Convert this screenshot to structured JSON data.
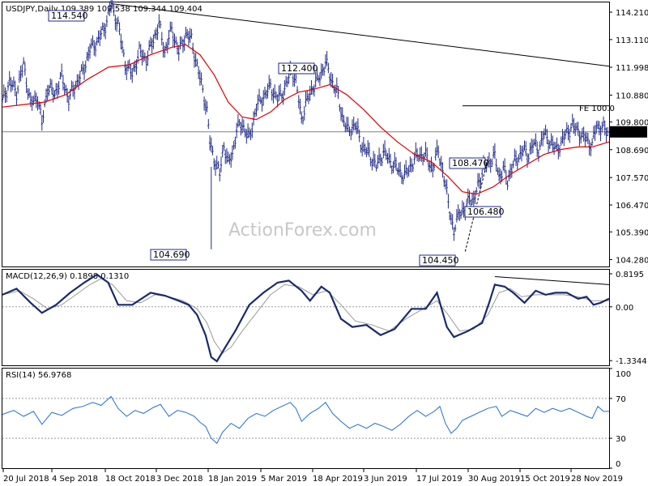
{
  "chart_data": {
    "type": "line",
    "colors": {
      "price": "#1f2a8a",
      "sma": "#e00000",
      "macd": "#1a2a6e",
      "signal": "#9a9a9a",
      "rsi": "#1f6fd6",
      "frame": "#000000",
      "current_price_bg": "#000000"
    },
    "watermark": "ActionForex.com",
    "grid": false,
    "x_axis": {
      "tick_labels": [
        "20 Jul 2018",
        "4 Sep 2018",
        "18 Oct 2018",
        "3 Dec 2018",
        "18 Jan 2019",
        "5 Mar 2019",
        "18 Apr 2019",
        "3 Jun 2019",
        "17 Jul 2019",
        "30 Aug 2019",
        "15 Oct 2019",
        "28 Nov 2019"
      ]
    },
    "price_panel": {
      "header": "USDJPY,Daily  109.389 109.538 109.344 109.404",
      "ylim": [
        104.0,
        114.6
      ],
      "y_ticks": [
        "114.210",
        "113.110",
        "111.998",
        "110.880",
        "109.800",
        "108.690",
        "107.570",
        "106.470",
        "105.390",
        "104.280"
      ],
      "current_price": "109.404",
      "current_value": 109.404,
      "fe_label": "FE 100.0",
      "fe_level": 110.45,
      "price_path": [
        [
          0,
          110.6
        ],
        [
          5,
          111.4
        ],
        [
          10,
          111.0
        ],
        [
          15,
          112.1
        ],
        [
          20,
          110.5
        ],
        [
          25,
          110.8
        ],
        [
          28,
          109.7
        ],
        [
          32,
          111.2
        ],
        [
          37,
          110.9
        ],
        [
          42,
          111.6
        ],
        [
          47,
          110.7
        ],
        [
          52,
          111.3
        ],
        [
          57,
          111.8
        ],
        [
          62,
          112.7
        ],
        [
          67,
          113.0
        ],
        [
          72,
          113.5
        ],
        [
          77,
          114.5
        ],
        [
          82,
          113.7
        ],
        [
          87,
          112.1
        ],
        [
          92,
          111.7
        ],
        [
          97,
          112.6
        ],
        [
          102,
          112.3
        ],
        [
          107,
          113.1
        ],
        [
          111,
          113.7
        ],
        [
          115,
          112.6
        ],
        [
          120,
          113.5
        ],
        [
          125,
          112.6
        ],
        [
          130,
          113.3
        ],
        [
          134,
          113.1
        ],
        [
          138,
          112.0
        ],
        [
          142,
          111.1
        ],
        [
          145,
          110.2
        ],
        [
          147,
          109.0
        ],
        [
          150,
          108.3
        ],
        [
          154,
          107.7
        ],
        [
          157,
          108.9
        ],
        [
          160,
          108.1
        ],
        [
          163,
          108.5
        ],
        [
          166,
          109.5
        ],
        [
          170,
          109.7
        ],
        [
          175,
          109.1
        ],
        [
          180,
          110.4
        ],
        [
          185,
          110.8
        ],
        [
          190,
          111.2
        ],
        [
          195,
          110.7
        ],
        [
          200,
          111.1
        ],
        [
          205,
          111.9
        ],
        [
          208,
          111.4
        ],
        [
          212,
          109.9
        ],
        [
          215,
          110.5
        ],
        [
          220,
          111.2
        ],
        [
          225,
          111.6
        ],
        [
          229,
          112.2
        ],
        [
          233,
          111.5
        ],
        [
          237,
          111.0
        ],
        [
          241,
          110.0
        ],
        [
          245,
          109.4
        ],
        [
          250,
          109.7
        ],
        [
          255,
          108.8
        ],
        [
          260,
          108.5
        ],
        [
          265,
          108.0
        ],
        [
          270,
          108.6
        ],
        [
          275,
          108.2
        ],
        [
          280,
          107.9
        ],
        [
          285,
          107.6
        ],
        [
          290,
          108.1
        ],
        [
          295,
          108.5
        ],
        [
          300,
          108.4
        ],
        [
          305,
          107.9
        ],
        [
          309,
          108.7
        ],
        [
          313,
          107.5
        ],
        [
          317,
          106.3
        ],
        [
          320,
          105.3
        ],
        [
          324,
          106.3
        ],
        [
          328,
          106.1
        ],
        [
          331,
          106.9
        ],
        [
          334,
          106.5
        ],
        [
          337,
          107.3
        ],
        [
          341,
          107.9
        ],
        [
          345,
          108.2
        ],
        [
          349,
          108.4
        ],
        [
          352,
          107.6
        ],
        [
          355,
          107.9
        ],
        [
          358,
          107.4
        ],
        [
          361,
          108.0
        ],
        [
          365,
          108.3
        ],
        [
          369,
          108.7
        ],
        [
          372,
          108.4
        ],
        [
          376,
          108.9
        ],
        [
          380,
          108.7
        ],
        [
          384,
          109.3
        ],
        [
          388,
          109.0
        ],
        [
          392,
          108.7
        ],
        [
          396,
          108.9
        ],
        [
          400,
          109.4
        ],
        [
          404,
          109.6
        ],
        [
          408,
          109.5
        ],
        [
          411,
          109.1
        ],
        [
          414,
          109.2
        ],
        [
          416,
          108.9
        ],
        [
          418,
          108.8
        ],
        [
          421,
          109.7
        ],
        [
          424,
          109.5
        ],
        [
          427,
          109.5
        ],
        [
          430,
          109.4
        ]
      ],
      "sma_path": [
        [
          0,
          110.4
        ],
        [
          15,
          110.5
        ],
        [
          30,
          110.6
        ],
        [
          45,
          110.9
        ],
        [
          60,
          111.5
        ],
        [
          75,
          112.0
        ],
        [
          90,
          112.1
        ],
        [
          105,
          112.5
        ],
        [
          120,
          112.8
        ],
        [
          130,
          112.9
        ],
        [
          140,
          112.5
        ],
        [
          150,
          111.7
        ],
        [
          160,
          110.6
        ],
        [
          170,
          110.0
        ],
        [
          180,
          109.9
        ],
        [
          190,
          110.2
        ],
        [
          200,
          110.7
        ],
        [
          210,
          111.0
        ],
        [
          220,
          111.1
        ],
        [
          232,
          111.3
        ],
        [
          244,
          110.9
        ],
        [
          256,
          110.3
        ],
        [
          268,
          109.6
        ],
        [
          280,
          109.0
        ],
        [
          292,
          108.5
        ],
        [
          304,
          108.2
        ],
        [
          316,
          107.6
        ],
        [
          326,
          107.0
        ],
        [
          336,
          106.9
        ],
        [
          348,
          107.2
        ],
        [
          360,
          107.7
        ],
        [
          372,
          108.1
        ],
        [
          384,
          108.5
        ],
        [
          396,
          108.7
        ],
        [
          408,
          108.8
        ],
        [
          418,
          108.8
        ],
        [
          430,
          109.0
        ]
      ],
      "trendline": {
        "from": [
          77,
          114.55
        ],
        "to": [
          430,
          112.04
        ]
      },
      "annotations": [
        {
          "text": "114.540",
          "x": 77,
          "value": 114.54
        },
        {
          "text": "104.690",
          "x": 148,
          "value": 104.69
        },
        {
          "text": "112.400",
          "x": 229,
          "value": 112.4
        },
        {
          "text": "108.470",
          "x": 350,
          "value": 108.47
        },
        {
          "text": "106.480",
          "x": 358,
          "value": 106.48
        },
        {
          "text": "104.450",
          "x": 328,
          "value": 104.45
        }
      ]
    },
    "macd_panel": {
      "header": "MACD(12,26,9) 0.1898 0.1310",
      "ylim": [
        -1.45,
        0.92
      ],
      "y_ticks": [
        "0.8195",
        "0.00",
        "-1.3344"
      ],
      "zero_line": 0.0,
      "macd_values": [
        [
          0,
          0.3
        ],
        [
          10,
          0.45
        ],
        [
          20,
          0.1
        ],
        [
          28,
          -0.15
        ],
        [
          38,
          0.05
        ],
        [
          48,
          0.35
        ],
        [
          58,
          0.6
        ],
        [
          67,
          0.8
        ],
        [
          75,
          0.6
        ],
        [
          82,
          0.05
        ],
        [
          92,
          0.05
        ],
        [
          105,
          0.35
        ],
        [
          115,
          0.28
        ],
        [
          125,
          0.15
        ],
        [
          132,
          0.05
        ],
        [
          138,
          -0.2
        ],
        [
          144,
          -0.7
        ],
        [
          148,
          -1.25
        ],
        [
          152,
          -1.35
        ],
        [
          158,
          -1.0
        ],
        [
          165,
          -0.6
        ],
        [
          175,
          0.05
        ],
        [
          185,
          0.35
        ],
        [
          195,
          0.6
        ],
        [
          203,
          0.65
        ],
        [
          212,
          0.4
        ],
        [
          218,
          0.15
        ],
        [
          226,
          0.5
        ],
        [
          232,
          0.35
        ],
        [
          240,
          -0.3
        ],
        [
          248,
          -0.5
        ],
        [
          258,
          -0.45
        ],
        [
          268,
          -0.7
        ],
        [
          278,
          -0.55
        ],
        [
          290,
          -0.05
        ],
        [
          300,
          -0.05
        ],
        [
          308,
          0.35
        ],
        [
          315,
          -0.5
        ],
        [
          320,
          -0.75
        ],
        [
          330,
          -0.6
        ],
        [
          340,
          -0.4
        ],
        [
          345,
          0.1
        ],
        [
          349,
          0.55
        ],
        [
          356,
          0.5
        ],
        [
          362,
          0.35
        ],
        [
          370,
          0.1
        ],
        [
          378,
          0.4
        ],
        [
          385,
          0.3
        ],
        [
          392,
          0.35
        ],
        [
          400,
          0.35
        ],
        [
          408,
          0.2
        ],
        [
          414,
          0.25
        ],
        [
          419,
          0.05
        ],
        [
          424,
          0.1
        ],
        [
          430,
          0.2
        ]
      ],
      "signal_values": [
        [
          0,
          0.3
        ],
        [
          12,
          0.4
        ],
        [
          22,
          0.2
        ],
        [
          32,
          -0.05
        ],
        [
          42,
          0.05
        ],
        [
          52,
          0.3
        ],
        [
          62,
          0.55
        ],
        [
          70,
          0.7
        ],
        [
          78,
          0.55
        ],
        [
          88,
          0.15
        ],
        [
          98,
          0.1
        ],
        [
          108,
          0.3
        ],
        [
          118,
          0.25
        ],
        [
          128,
          0.15
        ],
        [
          138,
          -0.05
        ],
        [
          145,
          -0.4
        ],
        [
          150,
          -0.85
        ],
        [
          156,
          -1.15
        ],
        [
          162,
          -1.0
        ],
        [
          170,
          -0.6
        ],
        [
          180,
          -0.15
        ],
        [
          190,
          0.3
        ],
        [
          200,
          0.55
        ],
        [
          210,
          0.5
        ],
        [
          220,
          0.3
        ],
        [
          230,
          0.4
        ],
        [
          240,
          0.05
        ],
        [
          250,
          -0.35
        ],
        [
          262,
          -0.45
        ],
        [
          274,
          -0.6
        ],
        [
          286,
          -0.3
        ],
        [
          298,
          -0.05
        ],
        [
          308,
          0.15
        ],
        [
          316,
          -0.2
        ],
        [
          324,
          -0.6
        ],
        [
          334,
          -0.55
        ],
        [
          344,
          -0.2
        ],
        [
          352,
          0.35
        ],
        [
          360,
          0.45
        ],
        [
          368,
          0.25
        ],
        [
          378,
          0.3
        ],
        [
          388,
          0.3
        ],
        [
          398,
          0.3
        ],
        [
          408,
          0.25
        ],
        [
          418,
          0.15
        ],
        [
          430,
          0.15
        ]
      ],
      "trendline": {
        "from": [
          349,
          0.75
        ],
        "to": [
          430,
          0.55
        ]
      }
    },
    "rsi_panel": {
      "header": "RSI(14) 56.9768",
      "ylim": [
        0,
        100
      ],
      "y_ticks": [
        "100",
        "70",
        "30",
        "0"
      ],
      "levels": [
        70,
        30
      ],
      "rsi_values": [
        [
          0,
          54
        ],
        [
          8,
          58
        ],
        [
          15,
          52
        ],
        [
          22,
          57
        ],
        [
          28,
          44
        ],
        [
          35,
          56
        ],
        [
          42,
          53
        ],
        [
          50,
          60
        ],
        [
          57,
          62
        ],
        [
          64,
          66
        ],
        [
          70,
          63
        ],
        [
          77,
          72
        ],
        [
          82,
          60
        ],
        [
          88,
          52
        ],
        [
          94,
          58
        ],
        [
          100,
          55
        ],
        [
          107,
          61
        ],
        [
          112,
          64
        ],
        [
          118,
          52
        ],
        [
          124,
          58
        ],
        [
          130,
          56
        ],
        [
          136,
          52
        ],
        [
          140,
          46
        ],
        [
          144,
          42
        ],
        [
          148,
          30
        ],
        [
          152,
          25
        ],
        [
          156,
          36
        ],
        [
          162,
          45
        ],
        [
          168,
          40
        ],
        [
          174,
          50
        ],
        [
          180,
          55
        ],
        [
          186,
          52
        ],
        [
          192,
          58
        ],
        [
          198,
          62
        ],
        [
          204,
          66
        ],
        [
          208,
          60
        ],
        [
          212,
          47
        ],
        [
          218,
          55
        ],
        [
          224,
          60
        ],
        [
          229,
          66
        ],
        [
          234,
          55
        ],
        [
          240,
          47
        ],
        [
          246,
          40
        ],
        [
          252,
          44
        ],
        [
          258,
          40
        ],
        [
          264,
          45
        ],
        [
          270,
          42
        ],
        [
          276,
          38
        ],
        [
          282,
          44
        ],
        [
          288,
          52
        ],
        [
          294,
          58
        ],
        [
          300,
          52
        ],
        [
          306,
          57
        ],
        [
          310,
          62
        ],
        [
          314,
          45
        ],
        [
          318,
          35
        ],
        [
          322,
          40
        ],
        [
          326,
          48
        ],
        [
          332,
          52
        ],
        [
          338,
          56
        ],
        [
          344,
          60
        ],
        [
          350,
          62
        ],
        [
          354,
          52
        ],
        [
          360,
          58
        ],
        [
          366,
          55
        ],
        [
          372,
          52
        ],
        [
          378,
          60
        ],
        [
          384,
          56
        ],
        [
          390,
          60
        ],
        [
          396,
          57
        ],
        [
          402,
          60
        ],
        [
          408,
          56
        ],
        [
          414,
          52
        ],
        [
          418,
          50
        ],
        [
          422,
          62
        ],
        [
          426,
          57
        ],
        [
          430,
          57
        ]
      ]
    }
  }
}
